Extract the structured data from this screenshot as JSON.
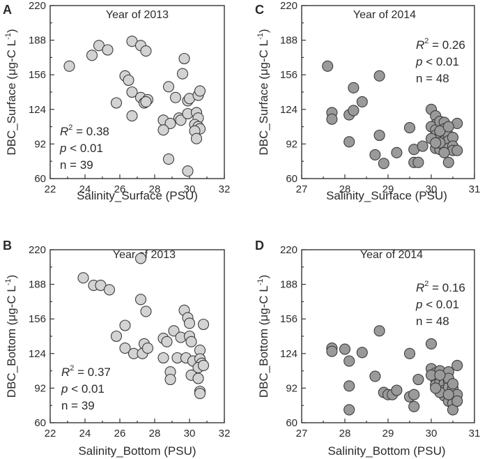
{
  "chart_data": [
    {
      "panel_label": "A",
      "type": "scatter",
      "title": "Year of 2013",
      "xlabel": "Salinity_Surface (PSU)",
      "ylabel": "DBC_Surface (μg-C L",
      "ylabel_sup": "-1",
      "ylabel_close": ")",
      "xlim": [
        22,
        32
      ],
      "ylim": [
        60,
        220
      ],
      "xticks": [
        22,
        24,
        26,
        28,
        30,
        32
      ],
      "yticks": [
        60,
        92,
        124,
        156,
        188,
        220
      ],
      "xtick_labels": [
        "22",
        "24",
        "26",
        "28",
        "30",
        "32"
      ],
      "ytick_labels": [
        "60",
        "92",
        "124",
        "156",
        "188",
        "220"
      ],
      "marker_color": "#d3d3d3",
      "stats": {
        "r2_label": "R",
        "r2_sup": "2",
        "r2_value": " = 0.38",
        "p_label": "p",
        "p_value": " < 0.01",
        "n_text": "n = 39"
      },
      "stats_position": "bottom-left",
      "points": [
        [
          23.1,
          164
        ],
        [
          24.4,
          174
        ],
        [
          24.8,
          183
        ],
        [
          25.3,
          179
        ],
        [
          26.7,
          187
        ],
        [
          27.2,
          183
        ],
        [
          27.5,
          178
        ],
        [
          29.7,
          171
        ],
        [
          26.3,
          155
        ],
        [
          26.5,
          151
        ],
        [
          25.8,
          130
        ],
        [
          26.7,
          140
        ],
        [
          27.2,
          135
        ],
        [
          27.6,
          133
        ],
        [
          27.4,
          130
        ],
        [
          27.5,
          131
        ],
        [
          29.6,
          157
        ],
        [
          28.8,
          145
        ],
        [
          29.2,
          135
        ],
        [
          29.9,
          132
        ],
        [
          30.0,
          134
        ],
        [
          30.5,
          137
        ],
        [
          30.6,
          141
        ],
        [
          26.7,
          118
        ],
        [
          28.5,
          114
        ],
        [
          28.9,
          111
        ],
        [
          29.4,
          116
        ],
        [
          29.5,
          114
        ],
        [
          28.5,
          105
        ],
        [
          29.9,
          120
        ],
        [
          30.4,
          121
        ],
        [
          30.5,
          116
        ],
        [
          30.3,
          110
        ],
        [
          30.5,
          108
        ],
        [
          30.6,
          106
        ],
        [
          30.3,
          104
        ],
        [
          30.4,
          97
        ],
        [
          28.8,
          78
        ],
        [
          29.9,
          67
        ]
      ]
    },
    {
      "panel_label": "C",
      "type": "scatter",
      "title": "Year of 2014",
      "xlabel": "Salinity_Surface (PSU)",
      "ylabel": "DBC_Surface (μg-C L",
      "ylabel_sup": "-1",
      "ylabel_close": ")",
      "xlim": [
        27,
        31
      ],
      "ylim": [
        60,
        220
      ],
      "xticks": [
        27,
        28,
        29,
        30,
        31
      ],
      "yticks": [
        60,
        92,
        124,
        156,
        188,
        220
      ],
      "xtick_labels": [
        "27",
        "28",
        "29",
        "30",
        "31"
      ],
      "ytick_labels": [
        "60",
        "92",
        "124",
        "156",
        "188",
        "220"
      ],
      "marker_color": "#9a9a9a",
      "stats": {
        "r2_label": "R",
        "r2_sup": "2",
        "r2_value": " = 0.26",
        "p_label": "p",
        "p_value": " < 0.01",
        "n_text": "n = 48"
      },
      "stats_position": "top-right",
      "points": [
        [
          27.6,
          164
        ],
        [
          27.7,
          121
        ],
        [
          27.7,
          115
        ],
        [
          28.1,
          119
        ],
        [
          28.1,
          94
        ],
        [
          28.2,
          144
        ],
        [
          28.2,
          123
        ],
        [
          28.4,
          131
        ],
        [
          28.7,
          82
        ],
        [
          28.8,
          155
        ],
        [
          28.8,
          100
        ],
        [
          28.9,
          74
        ],
        [
          29.2,
          84
        ],
        [
          29.5,
          107
        ],
        [
          29.6,
          87
        ],
        [
          29.6,
          75
        ],
        [
          29.7,
          75
        ],
        [
          29.8,
          90
        ],
        [
          30.0,
          124
        ],
        [
          30.1,
          118
        ],
        [
          30.1,
          110
        ],
        [
          30.0,
          108
        ],
        [
          30.1,
          105
        ],
        [
          30.1,
          100
        ],
        [
          30.2,
          98
        ],
        [
          30.1,
          88
        ],
        [
          30.2,
          87
        ],
        [
          30.2,
          113
        ],
        [
          30.3,
          112
        ],
        [
          30.3,
          106
        ],
        [
          30.3,
          102
        ],
        [
          30.3,
          95
        ],
        [
          30.3,
          90
        ],
        [
          30.4,
          100
        ],
        [
          30.4,
          95
        ],
        [
          30.4,
          88
        ],
        [
          30.5,
          98
        ],
        [
          30.5,
          90
        ],
        [
          30.5,
          86
        ],
        [
          30.4,
          75
        ],
        [
          30.6,
          111
        ],
        [
          30.6,
          86
        ],
        [
          30.2,
          93
        ],
        [
          30.0,
          97
        ],
        [
          30.2,
          104
        ],
        [
          30.4,
          108
        ],
        [
          30.1,
          93
        ],
        [
          30.3,
          84
        ]
      ]
    },
    {
      "panel_label": "B",
      "type": "scatter",
      "title": "Year of 2013",
      "xlabel": "Salinity_Bottom (PSU)",
      "ylabel": "DBC_Bottom (μg-C L",
      "ylabel_sup": "-1",
      "ylabel_close": ")",
      "xlim": [
        22,
        32
      ],
      "ylim": [
        60,
        220
      ],
      "xticks": [
        22,
        24,
        26,
        28,
        30,
        32
      ],
      "yticks": [
        60,
        92,
        124,
        156,
        188,
        220
      ],
      "xtick_labels": [
        "22",
        "24",
        "26",
        "28",
        "30",
        "32"
      ],
      "ytick_labels": [
        "60",
        "92",
        "124",
        "156",
        "188",
        "220"
      ],
      "marker_color": "#d3d3d3",
      "stats": {
        "r2_label": "R",
        "r2_sup": "2",
        "r2_value": " = 0.37",
        "p_label": "p",
        "p_value": " < 0.01",
        "n_text": "n = 39"
      },
      "stats_position": "bottom-left",
      "points": [
        [
          23.9,
          194
        ],
        [
          24.5,
          187
        ],
        [
          24.9,
          187
        ],
        [
          25.4,
          183
        ],
        [
          27.2,
          212
        ],
        [
          27.2,
          174
        ],
        [
          27.5,
          163
        ],
        [
          25.8,
          140
        ],
        [
          26.3,
          150
        ],
        [
          26.3,
          129
        ],
        [
          26.8,
          124
        ],
        [
          27.3,
          124
        ],
        [
          27.4,
          133
        ],
        [
          27.6,
          129
        ],
        [
          28.5,
          138
        ],
        [
          28.7,
          135
        ],
        [
          29.1,
          145
        ],
        [
          29.5,
          139
        ],
        [
          29.7,
          164
        ],
        [
          29.9,
          157
        ],
        [
          30.0,
          152
        ],
        [
          30.0,
          140
        ],
        [
          30.1,
          135
        ],
        [
          30.8,
          151
        ],
        [
          28.5,
          120
        ],
        [
          28.9,
          107
        ],
        [
          28.9,
          100
        ],
        [
          29.3,
          120
        ],
        [
          29.8,
          120
        ],
        [
          30.2,
          117
        ],
        [
          30.6,
          127
        ],
        [
          30.6,
          119
        ],
        [
          30.7,
          115
        ],
        [
          30.5,
          111
        ],
        [
          30.8,
          113
        ],
        [
          30.1,
          104
        ],
        [
          30.5,
          101
        ],
        [
          30.6,
          89
        ],
        [
          30.6,
          87
        ]
      ]
    },
    {
      "panel_label": "D",
      "type": "scatter",
      "title": "Year of 2014",
      "xlabel": "Salinity_Bottom (PSU)",
      "ylabel": "DBC_Bottom (μg-C L",
      "ylabel_sup": "-1",
      "ylabel_close": ")",
      "xlim": [
        27,
        31
      ],
      "ylim": [
        60,
        220
      ],
      "xticks": [
        27,
        28,
        29,
        30,
        31
      ],
      "yticks": [
        60,
        92,
        124,
        156,
        188,
        220
      ],
      "xtick_labels": [
        "27",
        "28",
        "29",
        "30",
        "31"
      ],
      "ytick_labels": [
        "60",
        "92",
        "124",
        "156",
        "188",
        "220"
      ],
      "marker_color": "#9a9a9a",
      "stats": {
        "r2_label": "R",
        "r2_sup": "2",
        "r2_value": " = 0.16",
        "p_label": "p",
        "p_value": " < 0.01",
        "n_text": "n = 48"
      },
      "stats_position": "top-right",
      "points": [
        [
          27.7,
          129
        ],
        [
          27.7,
          126
        ],
        [
          28.0,
          128
        ],
        [
          28.1,
          117
        ],
        [
          28.1,
          94
        ],
        [
          28.1,
          72
        ],
        [
          28.4,
          125
        ],
        [
          28.7,
          103
        ],
        [
          28.8,
          145
        ],
        [
          28.9,
          88
        ],
        [
          29.0,
          86
        ],
        [
          29.1,
          86
        ],
        [
          29.2,
          90
        ],
        [
          29.5,
          124
        ],
        [
          29.5,
          84
        ],
        [
          29.6,
          86
        ],
        [
          29.6,
          75
        ],
        [
          29.7,
          100
        ],
        [
          30.0,
          133
        ],
        [
          30.0,
          110
        ],
        [
          30.1,
          106
        ],
        [
          30.1,
          100
        ],
        [
          30.1,
          95
        ],
        [
          30.2,
          108
        ],
        [
          30.2,
          97
        ],
        [
          30.2,
          91
        ],
        [
          30.3,
          100
        ],
        [
          30.3,
          96
        ],
        [
          30.3,
          90
        ],
        [
          30.3,
          85
        ],
        [
          30.4,
          107
        ],
        [
          30.4,
          98
        ],
        [
          30.4,
          93
        ],
        [
          30.4,
          80
        ],
        [
          30.5,
          92
        ],
        [
          30.5,
          84
        ],
        [
          30.5,
          78
        ],
        [
          30.5,
          72
        ],
        [
          30.6,
          113
        ],
        [
          30.6,
          86
        ],
        [
          30.6,
          80
        ],
        [
          30.0,
          104
        ],
        [
          30.2,
          88
        ],
        [
          30.4,
          101
        ],
        [
          30.2,
          104
        ],
        [
          30.5,
          96
        ],
        [
          30.1,
          92
        ],
        [
          30.4,
          86
        ]
      ]
    }
  ]
}
